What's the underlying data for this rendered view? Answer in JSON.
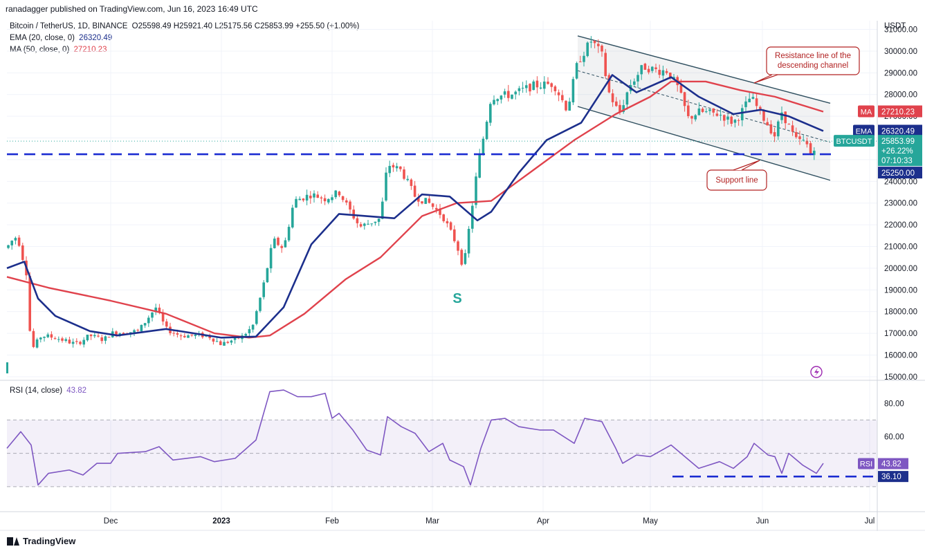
{
  "header": {
    "publisher": "ranadagger published on TradingView.com, Jun 16, 2023 16:49 UTC"
  },
  "legend": {
    "symbol": "Bitcoin / TetherUS, 1D, BINANCE",
    "ohlc": "O25598.49  H25921.40  L25175.56  C25853.99  +255.50 (+1.00%)",
    "ema_label": "EMA (20, close, 0)",
    "ema_value": "26320.49",
    "ma_label": "MA (50, close, 0)",
    "ma_value": "27210.23",
    "rsi_label": "RSI (14, close)",
    "rsi_value": "43.82"
  },
  "colors": {
    "up": "#26a69a",
    "down": "#ef5350",
    "ema": "#1c2f8c",
    "ma": "#e0424c",
    "rsi": "#7e57c2",
    "dashed": "#1a2bd1",
    "annotation": "#b22222"
  },
  "annotations": {
    "resistance": [
      "Resistance line of the",
      "descending channel"
    ],
    "support": "Support line",
    "s_marker": "S"
  },
  "price_axis": {
    "currency": "USDT",
    "ticks": [
      "31000.00",
      "30000.00",
      "29000.00",
      "28000.00",
      "27000.00",
      "26000.00",
      "25000.00",
      "24000.00",
      "23000.00",
      "22000.00",
      "21000.00",
      "20000.00",
      "19000.00",
      "18000.00",
      "17000.00",
      "16000.00",
      "15000.00"
    ],
    "tick_values": [
      31000,
      30000,
      29000,
      28000,
      27000,
      26000,
      25000,
      24000,
      23000,
      22000,
      21000,
      20000,
      19000,
      18000,
      17000,
      16000,
      15000
    ],
    "range": [
      14900,
      31400
    ]
  },
  "price_labels": {
    "ma": {
      "tag": "MA",
      "value": "27210.23",
      "price": 27210.23
    },
    "ema": {
      "tag": "EMA",
      "value": "26320.49",
      "price": 26320.49
    },
    "symbol": {
      "tag": "BTCUSDT",
      "value": "25853.99",
      "change": "+26.22%",
      "countdown": "07:10:33",
      "price": 25853.99
    },
    "support": {
      "value": "25250.00",
      "price": 25250
    }
  },
  "rsi_axis": {
    "ticks": [
      "80.00",
      "60.00"
    ],
    "tick_values": [
      80,
      60
    ],
    "range": [
      15,
      93
    ],
    "upper": 70,
    "mid": 50,
    "lower": 30,
    "current": {
      "tag": "RSI",
      "value": "43.82",
      "level": 43.82
    },
    "support": {
      "value": "36.10",
      "level": 36.1
    }
  },
  "time_axis": {
    "labels": [
      "Dec",
      "2023",
      "Feb",
      "Mar",
      "Apr",
      "May",
      "Jun",
      "Jul"
    ]
  },
  "chart_data": {
    "type": "candlestick",
    "title": "Bitcoin / TetherUS, 1D, BINANCE",
    "series": [
      {
        "name": "EMA (20, close, 0)",
        "points": [
          [
            0,
            20000
          ],
          [
            25,
            20300
          ],
          [
            45,
            18600
          ],
          [
            70,
            17800
          ],
          [
            120,
            17100
          ],
          [
            160,
            16900
          ],
          [
            230,
            17200
          ],
          [
            310,
            16800
          ],
          [
            360,
            16850
          ],
          [
            400,
            18200
          ],
          [
            440,
            21100
          ],
          [
            480,
            22500
          ],
          [
            520,
            22400
          ],
          [
            560,
            22300
          ],
          [
            600,
            23400
          ],
          [
            640,
            23300
          ],
          [
            680,
            22200
          ],
          [
            700,
            22600
          ],
          [
            740,
            24400
          ],
          [
            780,
            25900
          ],
          [
            830,
            26700
          ],
          [
            875,
            28900
          ],
          [
            910,
            28100
          ],
          [
            960,
            28800
          ],
          [
            1000,
            27900
          ],
          [
            1050,
            27100
          ],
          [
            1090,
            27300
          ],
          [
            1130,
            27000
          ],
          [
            1180,
            26320
          ]
        ]
      },
      {
        "name": "MA (50, close, 0)",
        "points": [
          [
            0,
            19600
          ],
          [
            60,
            19100
          ],
          [
            150,
            18500
          ],
          [
            230,
            17900
          ],
          [
            300,
            17000
          ],
          [
            350,
            16800
          ],
          [
            380,
            16900
          ],
          [
            430,
            17900
          ],
          [
            490,
            19500
          ],
          [
            540,
            20500
          ],
          [
            600,
            22400
          ],
          [
            650,
            23000
          ],
          [
            700,
            23100
          ],
          [
            760,
            24500
          ],
          [
            820,
            25900
          ],
          [
            880,
            27100
          ],
          [
            930,
            27900
          ],
          [
            960,
            28600
          ],
          [
            1010,
            28600
          ],
          [
            1060,
            28200
          ],
          [
            1110,
            27900
          ],
          [
            1180,
            27210
          ]
        ]
      },
      {
        "name": "RSI (14, close)",
        "points": [
          [
            0,
            53
          ],
          [
            20,
            63
          ],
          [
            35,
            55
          ],
          [
            45,
            31
          ],
          [
            60,
            38
          ],
          [
            90,
            40
          ],
          [
            110,
            37
          ],
          [
            130,
            44
          ],
          [
            150,
            44
          ],
          [
            160,
            50
          ],
          [
            200,
            51
          ],
          [
            220,
            54
          ],
          [
            240,
            46
          ],
          [
            280,
            48
          ],
          [
            300,
            45
          ],
          [
            330,
            47
          ],
          [
            360,
            58
          ],
          [
            380,
            87
          ],
          [
            400,
            88
          ],
          [
            420,
            84
          ],
          [
            440,
            84
          ],
          [
            460,
            86
          ],
          [
            470,
            71
          ],
          [
            480,
            74
          ],
          [
            500,
            64
          ],
          [
            520,
            52
          ],
          [
            540,
            49
          ],
          [
            550,
            72
          ],
          [
            570,
            66
          ],
          [
            590,
            62
          ],
          [
            610,
            51
          ],
          [
            630,
            56
          ],
          [
            640,
            46
          ],
          [
            660,
            42
          ],
          [
            670,
            31
          ],
          [
            685,
            53
          ],
          [
            700,
            70
          ],
          [
            720,
            71
          ],
          [
            740,
            66
          ],
          [
            770,
            64
          ],
          [
            790,
            64
          ],
          [
            820,
            56
          ],
          [
            835,
            71
          ],
          [
            860,
            69
          ],
          [
            880,
            53
          ],
          [
            890,
            44
          ],
          [
            910,
            49
          ],
          [
            930,
            48
          ],
          [
            960,
            55
          ],
          [
            980,
            48
          ],
          [
            1000,
            41
          ],
          [
            1030,
            45
          ],
          [
            1050,
            41
          ],
          [
            1070,
            48
          ],
          [
            1080,
            56
          ],
          [
            1100,
            49
          ],
          [
            1110,
            48
          ],
          [
            1120,
            38
          ],
          [
            1130,
            50
          ],
          [
            1150,
            43
          ],
          [
            1170,
            38
          ],
          [
            1180,
            44
          ]
        ]
      }
    ],
    "candles_path": [
      [
        0,
        20400
      ],
      [
        15,
        21200
      ],
      [
        25,
        21500
      ],
      [
        38,
        19800
      ],
      [
        45,
        16200
      ],
      [
        60,
        16900
      ],
      [
        80,
        16800
      ],
      [
        110,
        16500
      ],
      [
        130,
        16900
      ],
      [
        150,
        16700
      ],
      [
        160,
        17000
      ],
      [
        200,
        17100
      ],
      [
        225,
        18200
      ],
      [
        240,
        17200
      ],
      [
        260,
        16900
      ],
      [
        300,
        16900
      ],
      [
        320,
        16500
      ],
      [
        350,
        16850
      ],
      [
        365,
        17300
      ],
      [
        380,
        19100
      ],
      [
        395,
        21300
      ],
      [
        410,
        20900
      ],
      [
        425,
        23100
      ],
      [
        450,
        23400
      ],
      [
        470,
        23200
      ],
      [
        490,
        23500
      ],
      [
        520,
        21900
      ],
      [
        550,
        22300
      ],
      [
        560,
        24800
      ],
      [
        580,
        24500
      ],
      [
        600,
        23300
      ],
      [
        620,
        23000
      ],
      [
        640,
        22400
      ],
      [
        660,
        21100
      ],
      [
        670,
        20000
      ],
      [
        690,
        24600
      ],
      [
        710,
        27900
      ],
      [
        740,
        28000
      ],
      [
        770,
        28400
      ],
      [
        800,
        28500
      ],
      [
        820,
        27300
      ],
      [
        835,
        29500
      ],
      [
        855,
        30500
      ],
      [
        870,
        29800
      ],
      [
        880,
        28100
      ],
      [
        895,
        27100
      ],
      [
        910,
        28400
      ],
      [
        930,
        29300
      ],
      [
        950,
        29100
      ],
      [
        965,
        29100
      ],
      [
        980,
        28300
      ],
      [
        995,
        26900
      ],
      [
        1010,
        27200
      ],
      [
        1040,
        27100
      ],
      [
        1060,
        26700
      ],
      [
        1070,
        27100
      ],
      [
        1085,
        27900
      ],
      [
        1100,
        27100
      ],
      [
        1120,
        26100
      ],
      [
        1130,
        27200
      ],
      [
        1150,
        25900
      ],
      [
        1165,
        25800
      ],
      [
        1172,
        25200
      ],
      [
        1180,
        25854
      ]
    ],
    "ylim": [
      14900,
      31400
    ]
  }
}
